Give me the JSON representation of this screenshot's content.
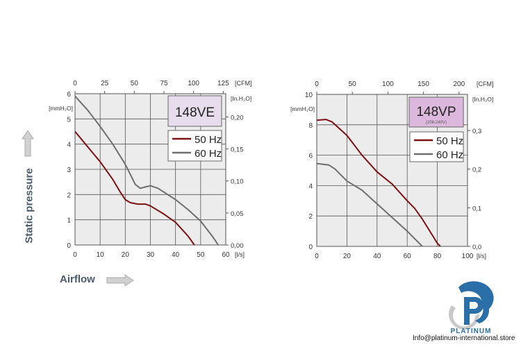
{
  "axis_titles": {
    "static_pressure": "Static pressure",
    "airflow": "Airflow"
  },
  "footer": {
    "brand": "PLATINUM",
    "email": "Info@platinum-international.store"
  },
  "colors": {
    "hz50": "#7b1113",
    "hz60": "#6e6e6e",
    "plot_bg": "#ececec",
    "title_ve": "#e6dcec",
    "title_vp": "#dcb8dc",
    "label_text": "#4a5a6e",
    "logo_blue": "#2a6fa8",
    "logo_grey": "#c8c8c8"
  },
  "chart_data": [
    {
      "type": "line",
      "title": "148VE",
      "subtitle": "",
      "xlabel": "[l/s]",
      "x2label": "[CFM]",
      "ylabel": "[mmH₂O]",
      "y2label": "[In.H₂O]",
      "xlim": [
        0,
        60
      ],
      "ylim": [
        0,
        6
      ],
      "xticks": [
        0,
        10,
        20,
        30,
        40,
        50,
        60
      ],
      "yticks": [
        0,
        1,
        2,
        3,
        4,
        5,
        6
      ],
      "x2ticks": [
        "0",
        "25",
        "50",
        "75",
        "100",
        "125"
      ],
      "x2_per_unit": 0.4719,
      "y2ticks": [
        "0,00",
        "0,05",
        "0,10",
        "0,15",
        "0,20"
      ],
      "y2_per_unit": 25.4,
      "grid": true,
      "legend": [
        "50 Hz",
        "60 Hz"
      ],
      "legend_placement": "top-right",
      "series": [
        {
          "name": "50 Hz",
          "x": [
            0,
            5,
            10,
            15,
            18,
            20,
            22,
            25,
            28,
            30,
            35,
            40,
            45,
            47.5
          ],
          "y": [
            4.5,
            3.9,
            3.3,
            2.6,
            2.1,
            1.8,
            1.68,
            1.62,
            1.62,
            1.55,
            1.25,
            0.9,
            0.35,
            0
          ]
        },
        {
          "name": "60 Hz",
          "x": [
            0,
            5,
            10,
            15,
            20,
            22,
            24,
            26,
            28,
            30,
            33,
            40,
            45,
            50,
            55,
            57
          ],
          "y": [
            5.9,
            5.35,
            4.7,
            4.0,
            3.2,
            2.8,
            2.4,
            2.25,
            2.3,
            2.35,
            2.25,
            1.8,
            1.4,
            0.95,
            0.3,
            0
          ]
        }
      ]
    },
    {
      "type": "line",
      "title": "148VP",
      "subtitle": "(208-240V)",
      "xlabel": "[l/s]",
      "x2label": "[CFM]",
      "ylabel": "[mmH₂O]",
      "y2label": "[In.H₂O]",
      "xlim": [
        0,
        100
      ],
      "ylim": [
        0,
        10
      ],
      "xticks": [
        0,
        20,
        40,
        60,
        80,
        100
      ],
      "yticks": [
        0,
        2,
        4,
        6,
        8,
        10
      ],
      "x2ticks": [
        "0",
        "50",
        "100",
        "150",
        "200"
      ],
      "x2_per_unit": 0.4719,
      "y2ticks": [
        "0,0",
        "0,1",
        "0,2",
        "0,3"
      ],
      "y2_per_unit": 25.4,
      "grid": true,
      "legend": [
        "50 Hz",
        "60 Hz"
      ],
      "legend_placement": "top-right",
      "series": [
        {
          "name": "50 Hz",
          "x": [
            0,
            6,
            10,
            20,
            30,
            40,
            50,
            60,
            65,
            70,
            75,
            80,
            82
          ],
          "y": [
            8.3,
            8.35,
            8.2,
            7.3,
            6.0,
            4.9,
            4.1,
            3.0,
            2.5,
            1.8,
            1.0,
            0.2,
            0
          ]
        },
        {
          "name": "60 Hz",
          "x": [
            0,
            8,
            12,
            20,
            30,
            40,
            50,
            60,
            70
          ],
          "y": [
            5.45,
            5.35,
            5.1,
            4.3,
            3.7,
            2.8,
            1.9,
            1.0,
            0
          ]
        }
      ]
    }
  ]
}
